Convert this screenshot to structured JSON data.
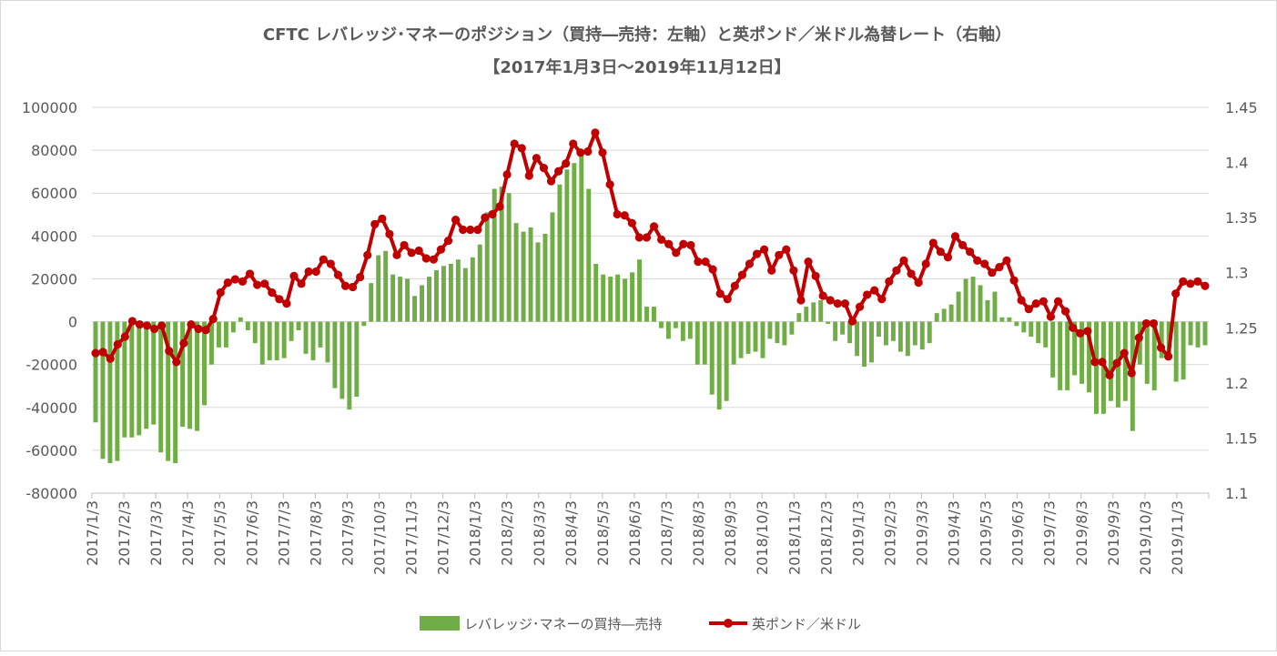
{
  "chart_data": {
    "type": "bar+line",
    "title": "CFTC  レバレッジ･マネーのポジション（買持―売持：左軸）と英ポンド／米ドル為替レート（右軸）",
    "subtitle": "【2017年1月3日～2019年11月12日】",
    "xlabel": "",
    "ylabel_left": "",
    "ylabel_right": "",
    "ylim_left": [
      -80000,
      100000
    ],
    "ylim_right": [
      1.1,
      1.45
    ],
    "yticks_left": [
      "100000",
      "80000",
      "60000",
      "40000",
      "20000",
      "0",
      "-20000",
      "-40000",
      "-60000",
      "-80000"
    ],
    "yticks_right": [
      "1.45",
      "1.4",
      "1.35",
      "1.3",
      "1.25",
      "1.2",
      "1.15",
      "1.1"
    ],
    "xticks": [
      "2017/1/3",
      "2017/2/3",
      "2017/3/3",
      "2017/4/3",
      "2017/5/3",
      "2017/6/3",
      "2017/7/3",
      "2017/8/3",
      "2017/9/3",
      "2017/10/3",
      "2017/11/3",
      "2017/12/3",
      "2018/1/3",
      "2018/2/3",
      "2018/3/3",
      "2018/4/3",
      "2018/5/3",
      "2018/6/3",
      "2018/7/3",
      "2018/8/3",
      "2018/9/3",
      "2018/10/3",
      "2018/11/3",
      "2018/12/3",
      "2019/1/3",
      "2019/2/3",
      "2019/3/3",
      "2019/4/3",
      "2019/5/3",
      "2019/6/3",
      "2019/7/3",
      "2019/8/3",
      "2019/9/3",
      "2019/10/3",
      "2019/11/3"
    ],
    "grid": true,
    "legend_position": "bottom",
    "series": [
      {
        "name": "レバレッジ･マネーの買持―売持",
        "type": "bar",
        "axis": "left",
        "color": "#70ad47",
        "values": [
          -47000,
          -64000,
          -66000,
          -65000,
          -54000,
          -54000,
          -53000,
          -50000,
          -48000,
          -61000,
          -65000,
          -66000,
          -49000,
          -50000,
          -51000,
          -39000,
          -20000,
          -12000,
          -12000,
          -5000,
          2000,
          -4000,
          -10000,
          -20000,
          -18000,
          -18000,
          -17000,
          -9000,
          -4000,
          -15000,
          -18000,
          -12000,
          -19000,
          -31000,
          -36000,
          -41000,
          -35000,
          -2000,
          18000,
          31000,
          33000,
          22000,
          21000,
          20000,
          12000,
          17000,
          21000,
          24000,
          26000,
          27000,
          29000,
          25000,
          30000,
          36000,
          51000,
          62000,
          63000,
          60000,
          46000,
          42000,
          44000,
          37000,
          41000,
          51000,
          64000,
          71000,
          74000,
          80000,
          62000,
          27000,
          22000,
          21000,
          22000,
          20000,
          23000,
          29000,
          7000,
          7000,
          -3000,
          -8000,
          -3000,
          -9000,
          -8000,
          -20000,
          -20000,
          -34000,
          -41000,
          -37000,
          -20000,
          -17000,
          -15000,
          -14000,
          -17000,
          -8000,
          -10000,
          -11000,
          -6000,
          4000,
          7000,
          9000,
          10000,
          -1000,
          -9000,
          -6000,
          -10000,
          -16000,
          -21000,
          -19000,
          -7000,
          -11000,
          -9000,
          -14000,
          -16000,
          -11000,
          -13000,
          -10000,
          4000,
          6000,
          8000,
          14000,
          20000,
          21000,
          17000,
          10000,
          14000,
          2000,
          2000,
          -2000,
          -5000,
          -7000,
          -10000,
          -12000,
          -26000,
          -32000,
          -32000,
          -25000,
          -29000,
          -33000,
          -43000,
          -43000,
          -37000,
          -40000,
          -37000,
          -51000,
          -20000,
          -29000,
          -32000,
          -17000,
          -16000,
          -28000,
          -27000,
          -11000,
          -12000,
          -11000
        ]
      },
      {
        "name": "英ポンド／米ドル",
        "type": "line",
        "axis": "right",
        "color": "#c00000",
        "values": [
          1.227,
          1.228,
          1.222,
          1.235,
          1.242,
          1.256,
          1.253,
          1.252,
          1.249,
          1.252,
          1.229,
          1.219,
          1.236,
          1.253,
          1.249,
          1.248,
          1.258,
          1.282,
          1.291,
          1.294,
          1.292,
          1.299,
          1.289,
          1.29,
          1.282,
          1.276,
          1.272,
          1.297,
          1.29,
          1.301,
          1.301,
          1.312,
          1.308,
          1.298,
          1.288,
          1.287,
          1.296,
          1.316,
          1.344,
          1.349,
          1.335,
          1.316,
          1.325,
          1.318,
          1.32,
          1.313,
          1.312,
          1.321,
          1.329,
          1.348,
          1.339,
          1.339,
          1.339,
          1.35,
          1.353,
          1.36,
          1.389,
          1.417,
          1.413,
          1.388,
          1.404,
          1.395,
          1.383,
          1.392,
          1.399,
          1.417,
          1.409,
          1.41,
          1.427,
          1.409,
          1.38,
          1.353,
          1.352,
          1.345,
          1.332,
          1.332,
          1.342,
          1.33,
          1.326,
          1.318,
          1.326,
          1.325,
          1.31,
          1.31,
          1.303,
          1.281,
          1.276,
          1.288,
          1.298,
          1.308,
          1.317,
          1.321,
          1.302,
          1.316,
          1.321,
          1.302,
          1.275,
          1.31,
          1.297,
          1.279,
          1.275,
          1.272,
          1.272,
          1.256,
          1.269,
          1.28,
          1.284,
          1.276,
          1.292,
          1.302,
          1.311,
          1.299,
          1.291,
          1.308,
          1.327,
          1.319,
          1.314,
          1.333,
          1.325,
          1.319,
          1.311,
          1.308,
          1.3,
          1.305,
          1.311,
          1.293,
          1.275,
          1.267,
          1.272,
          1.274,
          1.26,
          1.274,
          1.265,
          1.25,
          1.245,
          1.247,
          1.219,
          1.219,
          1.207,
          1.218,
          1.227,
          1.209,
          1.241,
          1.254,
          1.254,
          1.232,
          1.224,
          1.281,
          1.292,
          1.29,
          1.292,
          1.288
        ]
      }
    ]
  }
}
